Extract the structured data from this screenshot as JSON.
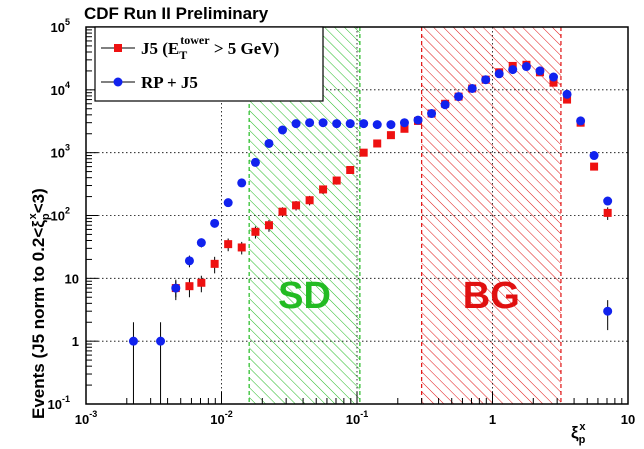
{
  "chart_data": {
    "type": "scatter",
    "title": "CDF Run II Preliminary",
    "ylabel": "Events (J5 norm to 0.2<ξ_p^x<3)",
    "xlabel": "ξ_p^x",
    "x_scale": "log",
    "y_scale": "log",
    "xlim": [
      0.001,
      10
    ],
    "ylim": [
      0.1,
      100000
    ],
    "grid": true,
    "x_ticks": [
      {
        "base": "10",
        "exp": "-3"
      },
      {
        "base": "10",
        "exp": "-2"
      },
      {
        "base": "10",
        "exp": "-1"
      },
      {
        "base": "1",
        "exp": ""
      },
      {
        "base": "10",
        "exp": ""
      }
    ],
    "y_ticks": [
      {
        "base": "10",
        "exp": "-1"
      },
      {
        "base": "1",
        "exp": ""
      },
      {
        "base": "10",
        "exp": ""
      },
      {
        "base": "10",
        "exp": "2"
      },
      {
        "base": "10",
        "exp": "3"
      },
      {
        "base": "10",
        "exp": "4"
      },
      {
        "base": "10",
        "exp": "5"
      }
    ],
    "legend": {
      "placement": "top-left",
      "entries": [
        {
          "series": 0,
          "parts": [
            "J5 (E",
            "T",
            "tower",
            " > 5 GeV)"
          ]
        },
        {
          "series": 1,
          "parts": [
            "RP + J5"
          ]
        }
      ]
    },
    "regions": [
      {
        "label": "SD",
        "x_range": [
          0.016,
          0.105
        ],
        "color": "#22bb22"
      },
      {
        "label": "BG",
        "x_range": [
          0.3,
          3.2
        ],
        "color": "#e01010"
      }
    ],
    "series": [
      {
        "name": "J5 (E_T^tower > 5 GeV)",
        "marker": "square",
        "color": "#ee1111",
        "x": [
          0.0046,
          0.0058,
          0.0071,
          0.0089,
          0.0112,
          0.0141,
          0.0178,
          0.0224,
          0.0282,
          0.0355,
          0.0447,
          0.0562,
          0.0708,
          0.0891,
          0.112,
          0.141,
          0.178,
          0.224,
          0.282,
          0.355,
          0.447,
          0.562,
          0.708,
          0.891,
          1.12,
          1.41,
          1.78,
          2.24,
          2.82,
          3.55,
          4.47,
          5.62,
          7.08
        ],
        "y": [
          7,
          7.5,
          8.5,
          17,
          35,
          31,
          55,
          70,
          115,
          145,
          175,
          260,
          360,
          530,
          1000,
          1400,
          1900,
          2400,
          3200,
          4200,
          6000,
          7800,
          10500,
          14500,
          19000,
          24000,
          25000,
          19000,
          13000,
          7000,
          3000,
          600,
          110
        ],
        "y_err_low": [
          2,
          2.5,
          2.5,
          5,
          8,
          7,
          12,
          15,
          20,
          25,
          30,
          40,
          50,
          60,
          80,
          100,
          120,
          140,
          160,
          200,
          250,
          300,
          400,
          500,
          600,
          700,
          700,
          600,
          500,
          400,
          200,
          80,
          25
        ],
        "y_err_high": [
          2,
          2.5,
          2.5,
          5,
          8,
          7,
          12,
          15,
          20,
          25,
          30,
          40,
          50,
          60,
          80,
          100,
          120,
          140,
          160,
          200,
          250,
          300,
          400,
          500,
          600,
          700,
          700,
          600,
          500,
          400,
          200,
          80,
          25
        ]
      },
      {
        "name": "RP + J5",
        "marker": "circle",
        "color": "#1122ee",
        "x": [
          0.00224,
          0.00355,
          0.0046,
          0.0058,
          0.0071,
          0.0089,
          0.0112,
          0.0141,
          0.0178,
          0.0224,
          0.0282,
          0.0355,
          0.0447,
          0.0562,
          0.0708,
          0.0891,
          0.112,
          0.141,
          0.178,
          0.224,
          0.282,
          0.355,
          0.447,
          0.562,
          0.708,
          0.891,
          1.12,
          1.41,
          1.78,
          2.24,
          2.82,
          3.55,
          4.47,
          5.62,
          7.08
        ],
        "y": [
          1,
          1,
          7,
          19,
          37,
          75,
          160,
          330,
          700,
          1400,
          2300,
          2900,
          3000,
          3000,
          2900,
          2900,
          2900,
          2800,
          2800,
          3000,
          3300,
          4200,
          5800,
          7800,
          10500,
          14500,
          18000,
          21000,
          23500,
          20000,
          16000,
          8500,
          3200,
          900,
          170
        ],
        "y_err_low": [
          0.99,
          0.99,
          2.5,
          4,
          6,
          9,
          13,
          18,
          26,
          37,
          48,
          54,
          55,
          55,
          54,
          54,
          54,
          53,
          53,
          55,
          57,
          65,
          76,
          88,
          102,
          120,
          134,
          145,
          153,
          141,
          126,
          92,
          57,
          30,
          13
        ],
        "y_err_high": [
          1,
          1,
          2.5,
          4,
          6,
          9,
          13,
          18,
          26,
          37,
          48,
          54,
          55,
          55,
          54,
          54,
          54,
          53,
          53,
          55,
          57,
          65,
          76,
          88,
          102,
          120,
          134,
          145,
          153,
          141,
          126,
          92,
          57,
          30,
          13
        ]
      }
    ],
    "extra_points": [
      {
        "series": 1,
        "x": 7.08,
        "y": 3,
        "y_err_low": 1.5,
        "y_err_high": 1.5
      }
    ]
  }
}
